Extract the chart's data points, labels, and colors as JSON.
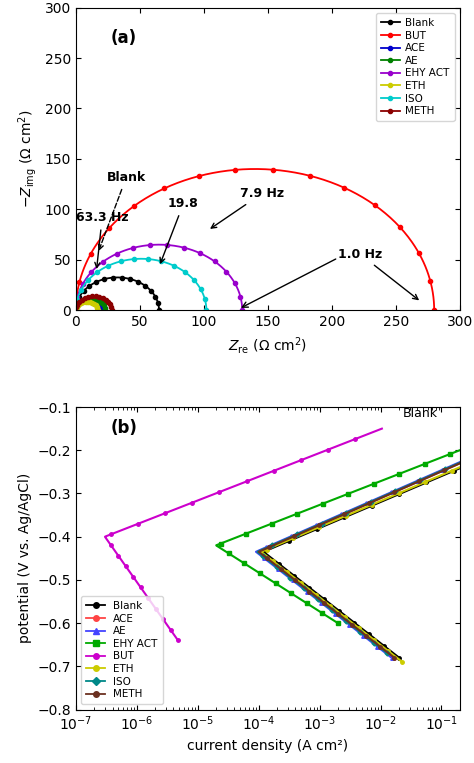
{
  "panel_a_label": "(a)",
  "panel_b_label": "(b)",
  "impedance": {
    "xlabel": "Z_re (Ω cm²)",
    "ylabel": "-Z_img (Ω cm²)",
    "xlim": [
      0,
      300
    ],
    "ylim": [
      0,
      300
    ],
    "xticks": [
      0,
      50,
      100,
      150,
      200,
      250,
      300
    ],
    "yticks": [
      0,
      50,
      100,
      150,
      200,
      250,
      300
    ],
    "series": [
      {
        "label": "Blank",
        "color": "#000000",
        "D": 65,
        "x0": 0
      },
      {
        "label": "BUT",
        "color": "#ff0000",
        "D": 280,
        "x0": 0
      },
      {
        "label": "ACE",
        "color": "#0000cc",
        "D": 20,
        "x0": 0
      },
      {
        "label": "AE",
        "color": "#008000",
        "D": 23,
        "x0": 0
      },
      {
        "label": "EHY ACT",
        "color": "#9900cc",
        "D": 130,
        "x0": 0
      },
      {
        "label": "ETH",
        "color": "#cccc00",
        "D": 17,
        "x0": 0
      },
      {
        "label": "ISO",
        "color": "#00cccc",
        "D": 102,
        "x0": 0
      },
      {
        "label": "METH",
        "color": "#8b0000",
        "D": 28,
        "x0": 0
      }
    ]
  },
  "polarization": {
    "xlabel": "current density (A cm²)",
    "ylabel": "potential (V vs. Ag/AgCl)",
    "ylim": [
      -0.8,
      -0.1
    ],
    "yticks": [
      -0.8,
      -0.7,
      -0.6,
      -0.5,
      -0.4,
      -0.3,
      -0.2,
      -0.1
    ],
    "curves": [
      {
        "label": "Blank",
        "color": "#000000",
        "Ecorr": -0.435,
        "icorr": 0.00012,
        "ba": 7.0,
        "bc": 5.5,
        "Emax": -0.14,
        "Emin": -0.68,
        "marker": "o"
      },
      {
        "label": "ACE",
        "color": "#ff4444",
        "Ecorr": -0.435,
        "icorr": 0.0001,
        "ba": 7.0,
        "bc": 5.5,
        "Emax": -0.17,
        "Emin": -0.68,
        "marker": "o"
      },
      {
        "label": "AE",
        "color": "#4444ff",
        "Ecorr": -0.435,
        "icorr": 9e-05,
        "ba": 7.0,
        "bc": 5.5,
        "Emax": -0.17,
        "Emin": -0.68,
        "marker": "^"
      },
      {
        "label": "EHY ACT",
        "color": "#00aa00",
        "Ecorr": -0.42,
        "icorr": 2.5e-05,
        "ba": 8.0,
        "bc": 4.5,
        "Emax": -0.14,
        "Emin": -0.6,
        "marker": "s"
      },
      {
        "label": "BUT",
        "color": "#cc00cc",
        "Ecorr": -0.4,
        "icorr": 3e-07,
        "ba": 5.0,
        "bc": 2.0,
        "Emax": -0.15,
        "Emin": -0.64,
        "marker": "o",
        "plateau": true
      },
      {
        "label": "ETH",
        "color": "#cccc00",
        "Ecorr": -0.435,
        "icorr": 0.00011,
        "ba": 6.5,
        "bc": 5.5,
        "Emax": -0.17,
        "Emin": -0.69,
        "marker": "o"
      },
      {
        "label": "ISO",
        "color": "#008888",
        "Ecorr": -0.435,
        "icorr": 9.5e-05,
        "ba": 7.0,
        "bc": 5.5,
        "Emax": -0.17,
        "Emin": -0.67,
        "marker": "D"
      },
      {
        "label": "METH",
        "color": "#6b3020",
        "Ecorr": -0.435,
        "icorr": 0.0001,
        "ba": 7.0,
        "bc": 5.5,
        "Emax": -0.17,
        "Emin": -0.68,
        "marker": "o"
      }
    ],
    "legend_order": [
      "Blank",
      "ACE",
      "AE",
      "EHY ACT",
      "BUT",
      "ETH",
      "ISO",
      "METH"
    ]
  }
}
